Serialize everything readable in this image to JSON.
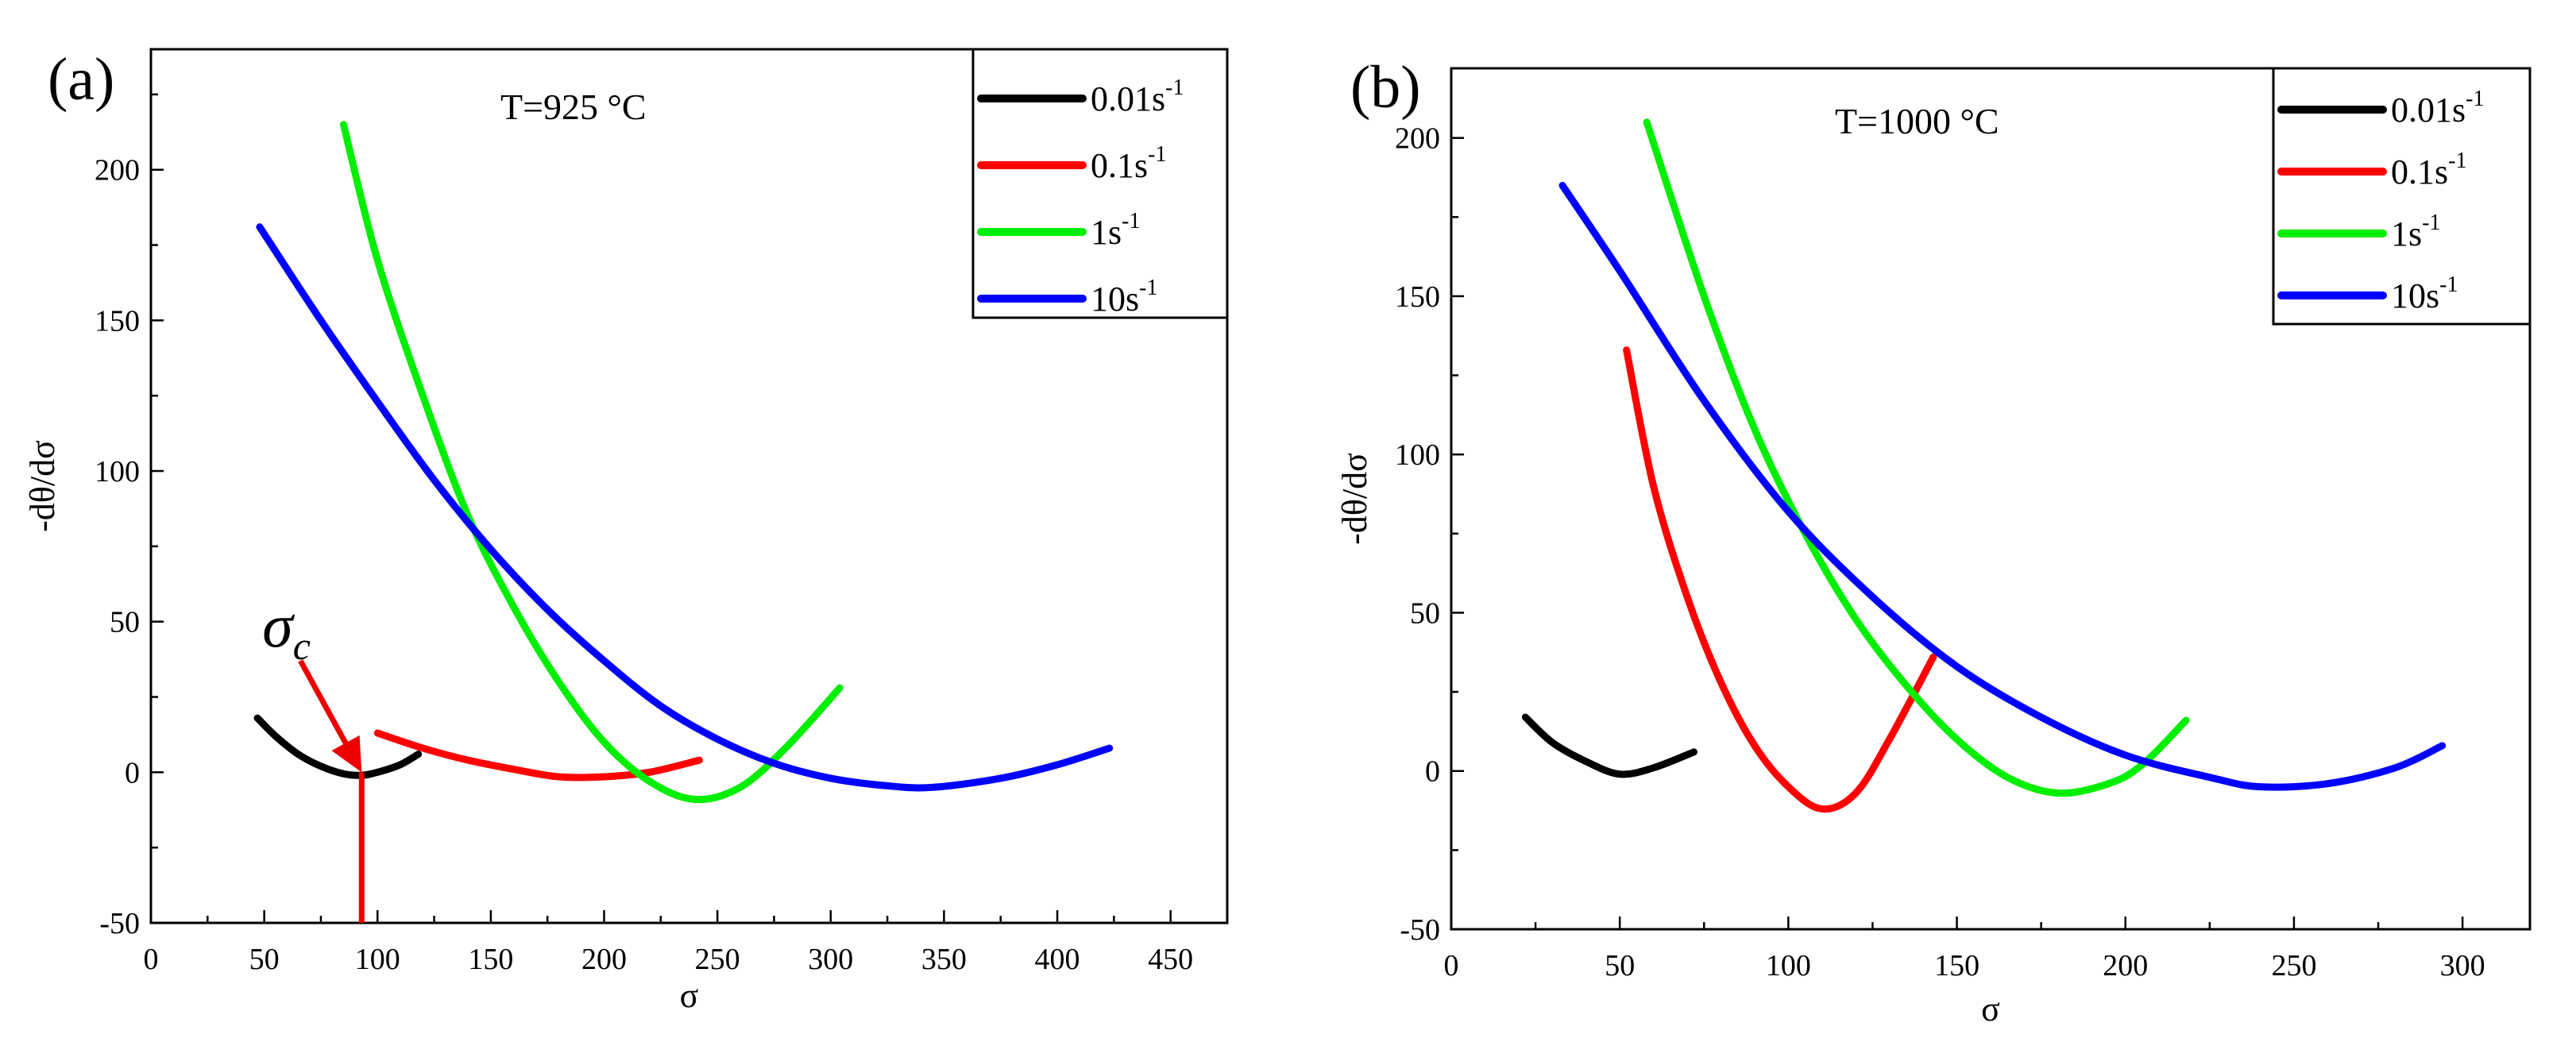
{
  "chart_data": [
    {
      "type": "line",
      "panel_label": "(a)",
      "annotation": "T=925 °C",
      "xlabel": "σ",
      "ylabel": "-dθ/dσ",
      "xlim": [
        0,
        475
      ],
      "ylim": [
        -50,
        240
      ],
      "xticks": [
        0,
        50,
        100,
        150,
        200,
        250,
        300,
        350,
        400,
        450
      ],
      "yticks": [
        -50,
        0,
        50,
        100,
        150,
        200
      ],
      "legend_position": "top-right",
      "critical_stress": {
        "symbol": "σ",
        "subscript": "c",
        "arrow_from": [
          66,
          37
        ],
        "arrow_to": [
          93,
          0
        ],
        "x": 93
      },
      "series": [
        {
          "name": "0.01s",
          "sup": "-1",
          "color": "#000000",
          "x": [
            47,
            55,
            65,
            75,
            85,
            93,
            100,
            110,
            118
          ],
          "y": [
            18,
            12,
            6,
            2,
            -0.5,
            -1,
            0,
            2.5,
            6
          ]
        },
        {
          "name": "0.1s",
          "sup": "-1",
          "color": "#ff0000",
          "x": [
            100,
            120,
            140,
            160,
            180,
            200,
            220,
            242
          ],
          "y": [
            13,
            8,
            4,
            1,
            -1.5,
            -1.5,
            0,
            4
          ]
        },
        {
          "name": "1s",
          "sup": "-1",
          "color": "#00ee00",
          "x": [
            85,
            100,
            120,
            140,
            160,
            180,
            200,
            220,
            240,
            260,
            280,
            304
          ],
          "y": [
            215,
            170,
            125,
            85,
            55,
            30,
            10,
            -3,
            -9,
            -5,
            8,
            28
          ]
        },
        {
          "name": "10s",
          "sup": "-1",
          "color": "#0000ff",
          "x": [
            48,
            75,
            100,
            125,
            150,
            175,
            200,
            225,
            250,
            275,
            300,
            325,
            345,
            375,
            400,
            423
          ],
          "y": [
            181,
            150,
            123,
            97,
            74,
            54,
            37,
            22,
            11,
            3,
            -2,
            -4.5,
            -5,
            -2,
            2.5,
            8
          ]
        }
      ]
    },
    {
      "type": "line",
      "panel_label": "(b)",
      "annotation": "T=1000 °C",
      "xlabel": "σ",
      "ylabel": "-dθ/dσ",
      "xlim": [
        0,
        320
      ],
      "ylim": [
        -50,
        222
      ],
      "xticks": [
        0,
        50,
        100,
        150,
        200,
        250,
        300
      ],
      "yticks": [
        -50,
        0,
        50,
        100,
        150,
        200
      ],
      "legend_position": "top-right",
      "series": [
        {
          "name": "0.01s",
          "sup": "-1",
          "color": "#000000",
          "x": [
            22,
            30,
            40,
            50,
            60,
            72
          ],
          "y": [
            17,
            9,
            3,
            -1,
            1,
            6
          ]
        },
        {
          "name": "0.1s",
          "sup": "-1",
          "color": "#ff0000",
          "x": [
            52,
            60,
            70,
            80,
            90,
            100,
            110,
            120,
            130,
            143
          ],
          "y": [
            133,
            90,
            55,
            28,
            8,
            -5,
            -12,
            -7,
            10,
            36
          ]
        },
        {
          "name": "1s",
          "sup": "-1",
          "color": "#00ee00",
          "x": [
            58,
            75,
            90,
            105,
            120,
            135,
            150,
            165,
            180,
            195,
            205,
            218
          ],
          "y": [
            205,
            150,
            108,
            75,
            48,
            27,
            10,
            -2,
            -7,
            -4,
            2,
            16
          ]
        },
        {
          "name": "10s",
          "sup": "-1",
          "color": "#0000ff",
          "x": [
            33,
            50,
            75,
            100,
            125,
            150,
            175,
            200,
            225,
            240,
            260,
            280,
            294
          ],
          "y": [
            185,
            158,
            117,
            82,
            55,
            33,
            17,
            5,
            -2,
            -5,
            -4,
            1,
            8
          ]
        }
      ]
    }
  ]
}
